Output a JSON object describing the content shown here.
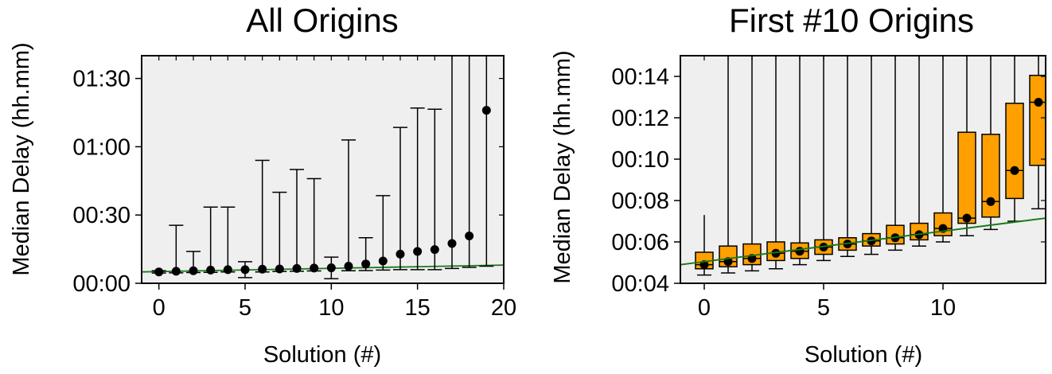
{
  "chart_data": [
    {
      "type": "scatter",
      "title": "All Origins",
      "xlabel": "Solution (#)",
      "ylabel": "Median Delay (hh.mm)",
      "xlim": [
        -1,
        20
      ],
      "ylim_minutes": [
        0,
        100
      ],
      "x_ticks": [
        0,
        5,
        10,
        15,
        20
      ],
      "y_ticks": [
        {
          "v": 0,
          "label": "00:00"
        },
        {
          "v": 30,
          "label": "00:30"
        },
        {
          "v": 60,
          "label": "01:00"
        },
        {
          "v": 90,
          "label": "01:30"
        }
      ],
      "grid": false,
      "background": "#efefef",
      "trend": {
        "color": "#1a7a1a",
        "from": [
          -1,
          5.0
        ],
        "to": [
          20,
          8.0
        ]
      },
      "points": [
        {
          "x": 0,
          "median": 5.0,
          "low": 4.5,
          "high": 5.5
        },
        {
          "x": 1,
          "median": 5.3,
          "low": 4.6,
          "high": 25.5
        },
        {
          "x": 2,
          "median": 5.5,
          "low": 4.7,
          "high": 14.0
        },
        {
          "x": 3,
          "median": 5.8,
          "low": 4.8,
          "high": 33.5
        },
        {
          "x": 4,
          "median": 6.0,
          "low": 5.0,
          "high": 33.5
        },
        {
          "x": 5,
          "median": 6.0,
          "low": 2.5,
          "high": 9.5
        },
        {
          "x": 6,
          "median": 6.2,
          "low": 5.0,
          "high": 54.0
        },
        {
          "x": 7,
          "median": 6.3,
          "low": 5.2,
          "high": 40.0
        },
        {
          "x": 8,
          "median": 6.5,
          "low": 5.3,
          "high": 50.0
        },
        {
          "x": 9,
          "median": 6.7,
          "low": 5.4,
          "high": 46.0
        },
        {
          "x": 10,
          "median": 6.8,
          "low": 2.0,
          "high": 11.5
        },
        {
          "x": 11,
          "median": 7.5,
          "low": 5.5,
          "high": 63.0
        },
        {
          "x": 12,
          "median": 8.5,
          "low": 5.6,
          "high": 20.0
        },
        {
          "x": 13,
          "median": 9.8,
          "low": 5.8,
          "high": 38.5
        },
        {
          "x": 14,
          "median": 12.8,
          "low": 6.0,
          "high": 68.5
        },
        {
          "x": 15,
          "median": 14.0,
          "low": 6.0,
          "high": 77.0
        },
        {
          "x": 16,
          "median": 14.8,
          "low": 6.0,
          "high": 76.5
        },
        {
          "x": 17,
          "median": 17.5,
          "low": 6.5,
          "high": 100
        },
        {
          "x": 18,
          "median": 20.8,
          "low": 7.0,
          "high": 100
        },
        {
          "x": 19,
          "median": 76.0,
          "low": 7.5,
          "high": 100
        }
      ]
    },
    {
      "type": "box",
      "title": "First #10 Origins",
      "xlabel": "Solution (#)",
      "ylabel": "Median Delay (hh.mm)",
      "xlim": [
        -1,
        14.3
      ],
      "ylim_minutes": [
        4,
        15
      ],
      "x_ticks": [
        0,
        5,
        10
      ],
      "y_ticks": [
        {
          "v": 4,
          "label": "00:04"
        },
        {
          "v": 6,
          "label": "00:06"
        },
        {
          "v": 8,
          "label": "00:08"
        },
        {
          "v": 10,
          "label": "00:10"
        },
        {
          "v": 12,
          "label": "00:12"
        },
        {
          "v": 14,
          "label": "00:14"
        }
      ],
      "grid": false,
      "background": "#efefef",
      "box_color": "#ff9f00",
      "trend": {
        "color": "#1a7a1a",
        "from": [
          -1,
          4.9
        ],
        "to": [
          14.3,
          7.15
        ]
      },
      "boxes": [
        {
          "x": 0,
          "low": 4.4,
          "q1": 4.7,
          "median": 4.9,
          "q3": 5.5,
          "high": 7.3
        },
        {
          "x": 1,
          "low": 4.5,
          "q1": 4.8,
          "median": 5.05,
          "q3": 5.8,
          "high": 15
        },
        {
          "x": 2,
          "low": 4.6,
          "q1": 4.9,
          "median": 5.2,
          "q3": 5.9,
          "high": 15
        },
        {
          "x": 3,
          "low": 4.7,
          "q1": 5.1,
          "median": 5.45,
          "q3": 6.0,
          "high": 15
        },
        {
          "x": 4,
          "low": 4.9,
          "q1": 5.2,
          "median": 5.55,
          "q3": 5.95,
          "high": 15
        },
        {
          "x": 5,
          "low": 5.1,
          "q1": 5.4,
          "median": 5.75,
          "q3": 6.1,
          "high": 15
        },
        {
          "x": 6,
          "low": 5.3,
          "q1": 5.6,
          "median": 5.9,
          "q3": 6.2,
          "high": 15
        },
        {
          "x": 7,
          "low": 5.4,
          "q1": 5.8,
          "median": 6.05,
          "q3": 6.4,
          "high": 15
        },
        {
          "x": 8,
          "low": 5.6,
          "q1": 5.9,
          "median": 6.2,
          "q3": 6.8,
          "high": 15
        },
        {
          "x": 9,
          "low": 5.8,
          "q1": 6.1,
          "median": 6.35,
          "q3": 6.9,
          "high": 15
        },
        {
          "x": 10,
          "low": 6.0,
          "q1": 6.3,
          "median": 6.65,
          "q3": 7.4,
          "high": 15
        },
        {
          "x": 11,
          "low": 6.3,
          "q1": 6.9,
          "median": 7.15,
          "q3": 11.3,
          "high": 15
        },
        {
          "x": 12,
          "low": 6.6,
          "q1": 7.2,
          "median": 7.95,
          "q3": 11.2,
          "high": 15
        },
        {
          "x": 13,
          "low": 7.0,
          "q1": 8.1,
          "median": 9.45,
          "q3": 12.7,
          "high": 15
        },
        {
          "x": 14,
          "low": 7.6,
          "q1": 9.7,
          "median": 12.75,
          "q3": 14.05,
          "high": 15
        }
      ]
    }
  ]
}
